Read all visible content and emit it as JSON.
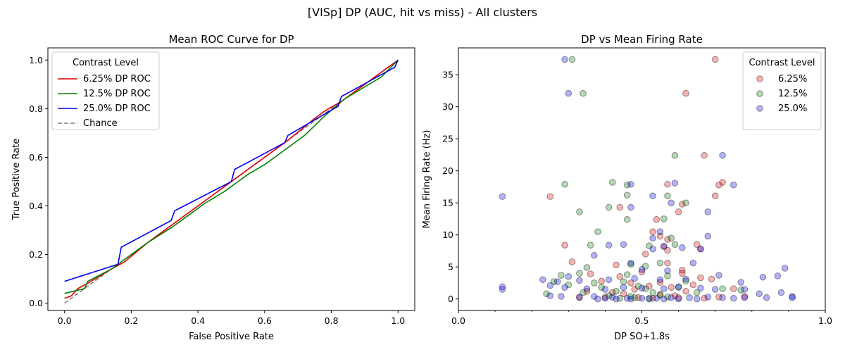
{
  "figure": {
    "title": "[VISp] DP (AUC, hit vs miss) - All clusters"
  },
  "colors": {
    "red": "#e00000",
    "green": "#008000",
    "blue": "#0000ee",
    "chance": "#808080"
  },
  "chart_data": [
    {
      "type": "line",
      "title": "Mean ROC Curve for DP",
      "xlabel": "False Positive Rate",
      "ylabel": "True Positive Rate",
      "xlim": [
        -0.05,
        1.05
      ],
      "ylim": [
        -0.03,
        1.05
      ],
      "xticks": [
        "0.0",
        "0.2",
        "0.4",
        "0.6",
        "0.8",
        "1.0"
      ],
      "yticks": [
        "0.0",
        "0.2",
        "0.4",
        "0.6",
        "0.8",
        "1.0"
      ],
      "legend": {
        "title": "Contrast Level",
        "location": "upper-left"
      },
      "series": [
        {
          "name": "6.25% DP ROC",
          "color": "#e00000",
          "dash": false,
          "points": [
            [
              0,
              0.02
            ],
            [
              0.02,
              0.03
            ],
            [
              0.04,
              0.06
            ],
            [
              0.08,
              0.09
            ],
            [
              0.14,
              0.14
            ],
            [
              0.18,
              0.17
            ],
            [
              0.25,
              0.25
            ],
            [
              0.33,
              0.33
            ],
            [
              0.42,
              0.42
            ],
            [
              0.5,
              0.5
            ],
            [
              0.58,
              0.58
            ],
            [
              0.67,
              0.67
            ],
            [
              0.75,
              0.76
            ],
            [
              0.78,
              0.79
            ],
            [
              0.83,
              0.83
            ],
            [
              0.9,
              0.9
            ],
            [
              1.0,
              1.0
            ]
          ]
        },
        {
          "name": "12.5% DP ROC",
          "color": "#008000",
          "dash": false,
          "points": [
            [
              0,
              0.04
            ],
            [
              0.06,
              0.06
            ],
            [
              0.07,
              0.09
            ],
            [
              0.14,
              0.14
            ],
            [
              0.18,
              0.18
            ],
            [
              0.25,
              0.25
            ],
            [
              0.32,
              0.31
            ],
            [
              0.36,
              0.35
            ],
            [
              0.42,
              0.41
            ],
            [
              0.48,
              0.46
            ],
            [
              0.52,
              0.5
            ],
            [
              0.55,
              0.53
            ],
            [
              0.6,
              0.57
            ],
            [
              0.66,
              0.63
            ],
            [
              0.72,
              0.69
            ],
            [
              0.78,
              0.77
            ],
            [
              0.84,
              0.84
            ],
            [
              0.9,
              0.89
            ],
            [
              0.95,
              0.93
            ],
            [
              1.0,
              1.0
            ]
          ]
        },
        {
          "name": "25.0% DP ROC",
          "color": "#0000ee",
          "dash": false,
          "points": [
            [
              0,
              0.09
            ],
            [
              0.16,
              0.16
            ],
            [
              0.17,
              0.23
            ],
            [
              0.32,
              0.34
            ],
            [
              0.33,
              0.38
            ],
            [
              0.5,
              0.5
            ],
            [
              0.51,
              0.55
            ],
            [
              0.66,
              0.66
            ],
            [
              0.67,
              0.69
            ],
            [
              0.82,
              0.81
            ],
            [
              0.83,
              0.85
            ],
            [
              0.99,
              0.97
            ],
            [
              1.0,
              1.0
            ]
          ]
        },
        {
          "name": "Chance",
          "color": "#808080",
          "dash": true,
          "points": [
            [
              0,
              0
            ],
            [
              1,
              1
            ]
          ]
        }
      ]
    },
    {
      "type": "scatter",
      "title": "DP vs Mean Firing Rate",
      "xlabel": "DP SO+1.8s",
      "ylabel": "Mean Firing Rate (Hz)",
      "xlim": [
        0.0,
        1.0
      ],
      "ylim": [
        -1.8,
        39.2
      ],
      "xticks": [
        "0.0",
        "0.5",
        "1.0"
      ],
      "yticks": [
        "0",
        "5",
        "10",
        "15",
        "20",
        "25",
        "30",
        "35"
      ],
      "legend": {
        "title": "Contrast Level",
        "location": "upper-right"
      },
      "series": [
        {
          "name": "6.25%",
          "color": "#e00000",
          "points": [
            [
              0.7,
              37.4
            ],
            [
              0.62,
              32.1
            ],
            [
              0.67,
              22.4
            ],
            [
              0.72,
              18.2
            ],
            [
              0.71,
              17.8
            ],
            [
              0.57,
              17.9
            ],
            [
              0.25,
              16.0
            ],
            [
              0.7,
              16.1
            ],
            [
              0.44,
              14.3
            ],
            [
              0.61,
              14.8
            ],
            [
              0.6,
              13.6
            ],
            [
              0.54,
              12.4
            ],
            [
              0.53,
              10.5
            ],
            [
              0.55,
              9.8
            ],
            [
              0.57,
              9.3
            ],
            [
              0.29,
              8.4
            ],
            [
              0.56,
              8.2
            ],
            [
              0.65,
              8.5
            ],
            [
              0.66,
              7.8
            ],
            [
              0.51,
              7.0
            ],
            [
              0.57,
              7.6
            ],
            [
              0.31,
              5.8
            ],
            [
              0.43,
              5.3
            ],
            [
              0.57,
              5.6
            ],
            [
              0.61,
              4.5
            ],
            [
              0.61,
              4.0
            ],
            [
              0.36,
              3.9
            ],
            [
              0.44,
              3.5
            ],
            [
              0.5,
              4.2
            ],
            [
              0.66,
              3.3
            ],
            [
              0.69,
              3.1
            ],
            [
              0.39,
              2.8
            ],
            [
              0.47,
              2.5
            ],
            [
              0.55,
              2.6
            ],
            [
              0.64,
              2.2
            ],
            [
              0.52,
              2.0
            ],
            [
              0.58,
              1.8
            ],
            [
              0.75,
              1.6
            ],
            [
              0.48,
              1.5
            ],
            [
              0.35,
              1.2
            ],
            [
              0.62,
              1.2
            ],
            [
              0.42,
              1.0
            ],
            [
              0.45,
              0.8
            ],
            [
              0.55,
              0.7
            ],
            [
              0.59,
              0.5
            ],
            [
              0.71,
              0.3
            ],
            [
              0.78,
              0.4
            ],
            [
              0.4,
              0.3
            ],
            [
              0.49,
              0.2
            ],
            [
              0.53,
              0.1
            ],
            [
              0.6,
              0.2
            ],
            [
              0.67,
              0.1
            ],
            [
              0.33,
              0.2
            ]
          ]
        },
        {
          "name": "12.5%",
          "color": "#008000",
          "points": [
            [
              0.31,
              37.4
            ],
            [
              0.34,
              32.1
            ],
            [
              0.59,
              22.4
            ],
            [
              0.29,
              17.9
            ],
            [
              0.42,
              18.2
            ],
            [
              0.46,
              17.8
            ],
            [
              0.46,
              16.2
            ],
            [
              0.57,
              16.1
            ],
            [
              0.62,
              15.0
            ],
            [
              0.33,
              13.6
            ],
            [
              0.41,
              14.3
            ],
            [
              0.46,
              12.4
            ],
            [
              0.56,
              12.5
            ],
            [
              0.58,
              9.5
            ],
            [
              0.38,
              10.5
            ],
            [
              0.36,
              8.4
            ],
            [
              0.52,
              8.3
            ],
            [
              0.59,
              8.5
            ],
            [
              0.35,
              4.9
            ],
            [
              0.47,
              5.4
            ],
            [
              0.51,
              5.1
            ],
            [
              0.55,
              5.6
            ],
            [
              0.33,
              4.0
            ],
            [
              0.46,
              3.8
            ],
            [
              0.57,
              3.6
            ],
            [
              0.28,
              3.7
            ],
            [
              0.26,
              2.7
            ],
            [
              0.37,
              2.5
            ],
            [
              0.45,
              2.7
            ],
            [
              0.62,
              2.8
            ],
            [
              0.3,
              2.2
            ],
            [
              0.39,
              1.8
            ],
            [
              0.49,
              2.0
            ],
            [
              0.51,
              1.6
            ],
            [
              0.6,
              1.8
            ],
            [
              0.72,
              1.6
            ],
            [
              0.24,
              0.8
            ],
            [
              0.34,
              1.0
            ],
            [
              0.43,
              1.2
            ],
            [
              0.53,
              1.0
            ],
            [
              0.65,
              1.0
            ],
            [
              0.77,
              1.4
            ],
            [
              0.41,
              0.5
            ],
            [
              0.47,
              0.4
            ],
            [
              0.55,
              0.6
            ],
            [
              0.48,
              0.2
            ],
            [
              0.52,
              0.1
            ],
            [
              0.57,
              0.3
            ],
            [
              0.44,
              0.1
            ]
          ]
        },
        {
          "name": "25.0%",
          "color": "#0000ee",
          "points": [
            [
              0.29,
              37.4
            ],
            [
              0.3,
              32.1
            ],
            [
              0.72,
              22.4
            ],
            [
              0.47,
              17.9
            ],
            [
              0.59,
              18.1
            ],
            [
              0.75,
              17.8
            ],
            [
              0.12,
              16.0
            ],
            [
              0.53,
              16.1
            ],
            [
              0.47,
              14.3
            ],
            [
              0.58,
              15.0
            ],
            [
              0.68,
              13.6
            ],
            [
              0.55,
              10.5
            ],
            [
              0.68,
              9.8
            ],
            [
              0.53,
              9.5
            ],
            [
              0.45,
              8.5
            ],
            [
              0.41,
              8.4
            ],
            [
              0.56,
              8.2
            ],
            [
              0.61,
              8.0
            ],
            [
              0.66,
              7.8
            ],
            [
              0.53,
              7.8
            ],
            [
              0.37,
              6.8
            ],
            [
              0.47,
              5.6
            ],
            [
              0.64,
              5.6
            ],
            [
              0.5,
              4.6
            ],
            [
              0.57,
              4.4
            ],
            [
              0.89,
              4.8
            ],
            [
              0.3,
              3.5
            ],
            [
              0.83,
              3.4
            ],
            [
              0.87,
              3.6
            ],
            [
              0.71,
              3.7
            ],
            [
              0.23,
              3.0
            ],
            [
              0.27,
              2.7
            ],
            [
              0.33,
              2.9
            ],
            [
              0.41,
              3.0
            ],
            [
              0.48,
              3.2
            ],
            [
              0.55,
              3.0
            ],
            [
              0.62,
              3.1
            ],
            [
              0.77,
              2.6
            ],
            [
              0.12,
              1.9
            ],
            [
              0.12,
              1.5
            ],
            [
              0.25,
              2.1
            ],
            [
              0.29,
              1.8
            ],
            [
              0.35,
              1.6
            ],
            [
              0.4,
              1.5
            ],
            [
              0.45,
              1.8
            ],
            [
              0.5,
              1.7
            ],
            [
              0.56,
              1.6
            ],
            [
              0.6,
              1.9
            ],
            [
              0.66,
              1.7
            ],
            [
              0.7,
              1.5
            ],
            [
              0.78,
              1.5
            ],
            [
              0.88,
              1.0
            ],
            [
              0.82,
              0.8
            ],
            [
              0.25,
              0.5
            ],
            [
              0.28,
              0.4
            ],
            [
              0.33,
              0.3
            ],
            [
              0.37,
              0.4
            ],
            [
              0.42,
              0.3
            ],
            [
              0.46,
              0.1
            ],
            [
              0.5,
              0.1
            ],
            [
              0.54,
              0.1
            ],
            [
              0.58,
              0.2
            ],
            [
              0.63,
              0.2
            ],
            [
              0.68,
              0.3
            ],
            [
              0.72,
              0.2
            ],
            [
              0.75,
              0.1
            ],
            [
              0.78,
              0.2
            ],
            [
              0.84,
              0.2
            ],
            [
              0.91,
              0.4
            ],
            [
              0.91,
              0.2
            ],
            [
              0.4,
              0.1
            ],
            [
              0.43,
              0.0
            ],
            [
              0.47,
              0.0
            ],
            [
              0.52,
              0.0
            ],
            [
              0.56,
              0.0
            ],
            [
              0.6,
              0.0
            ],
            [
              0.38,
              0.0
            ],
            [
              0.65,
              0.0
            ]
          ]
        }
      ]
    }
  ]
}
